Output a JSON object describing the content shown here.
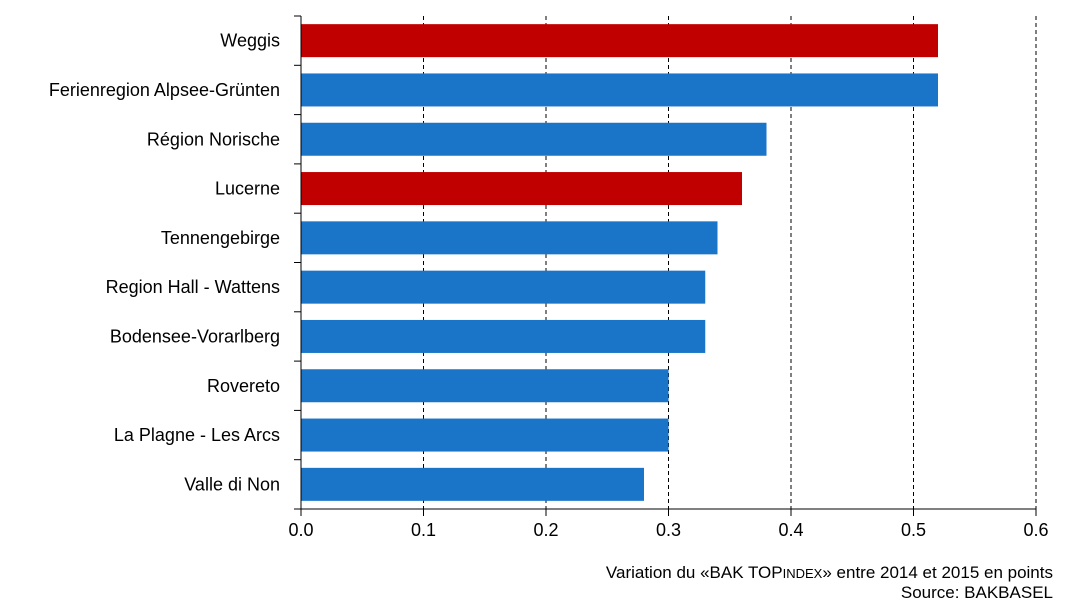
{
  "chart_data": {
    "type": "bar",
    "orientation": "horizontal",
    "categories": [
      "Weggis",
      "Ferienregion Alpsee-Grünten",
      "Région Norische",
      "Lucerne",
      "Tennengebirge",
      "Region Hall - Wattens",
      "Bodensee-Vorarlberg",
      "Rovereto",
      "La Plagne - Les Arcs",
      "Valle di Non"
    ],
    "values": [
      0.52,
      0.52,
      0.38,
      0.36,
      0.34,
      0.33,
      0.33,
      0.3,
      0.3,
      0.28
    ],
    "highlight": [
      true,
      false,
      false,
      true,
      false,
      false,
      false,
      false,
      false,
      false
    ],
    "colors": {
      "highlight": "#c00000",
      "default": "#1a75c8"
    },
    "xlim": [
      0,
      0.6
    ],
    "xticks": [
      "0.0",
      "0.1",
      "0.2",
      "0.3",
      "0.4",
      "0.5",
      "0.6"
    ],
    "grid": "vertical dashed",
    "legend": "none"
  },
  "caption": {
    "line1_pre": "Variation du «BAK TOP",
    "line1_sc": "INDEX",
    "line1_post": "» entre 2014 et 2015 en points",
    "line2": "Source: BAKBASEL"
  }
}
